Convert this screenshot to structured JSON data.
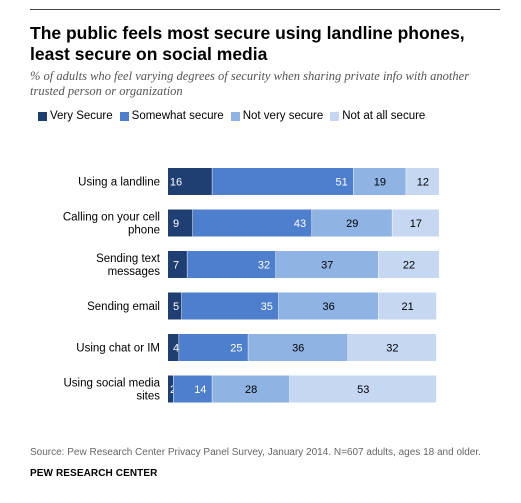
{
  "title": "The public feels most secure using landline phones, least secure on social media",
  "subtitle": "% of adults who feel varying degrees of security when sharing private info with another trusted person or organization",
  "colors": {
    "very_secure": "#1f3f73",
    "somewhat_secure": "#4e7fcd",
    "not_very_secure": "#8fb3e3",
    "not_at_all_secure": "#c6d8f1"
  },
  "chart_data": {
    "type": "bar",
    "orientation": "horizontal",
    "stacked": true,
    "categories": [
      [
        "Using a landline"
      ],
      [
        "Calling on your cell",
        "phone"
      ],
      [
        "Sending text",
        "messages"
      ],
      [
        "Sending email"
      ],
      [
        "Using chat or IM"
      ],
      [
        "Using social media",
        "sites"
      ]
    ],
    "series": [
      {
        "name": "Very Secure",
        "values": [
          16,
          9,
          7,
          5,
          4,
          2
        ]
      },
      {
        "name": "Somewhat secure",
        "values": [
          51,
          43,
          32,
          35,
          25,
          14
        ]
      },
      {
        "name": "Not very secure",
        "values": [
          19,
          29,
          37,
          36,
          36,
          28
        ]
      },
      {
        "name": "Not at all secure",
        "values": [
          12,
          17,
          22,
          21,
          32,
          53
        ]
      }
    ],
    "legend_position": "top",
    "grid": false
  },
  "source": "Source: Pew Research Center Privacy Panel Survey, January 2014. N=607 adults, ages 18 and older.",
  "org": "PEW RESEARCH CENTER"
}
